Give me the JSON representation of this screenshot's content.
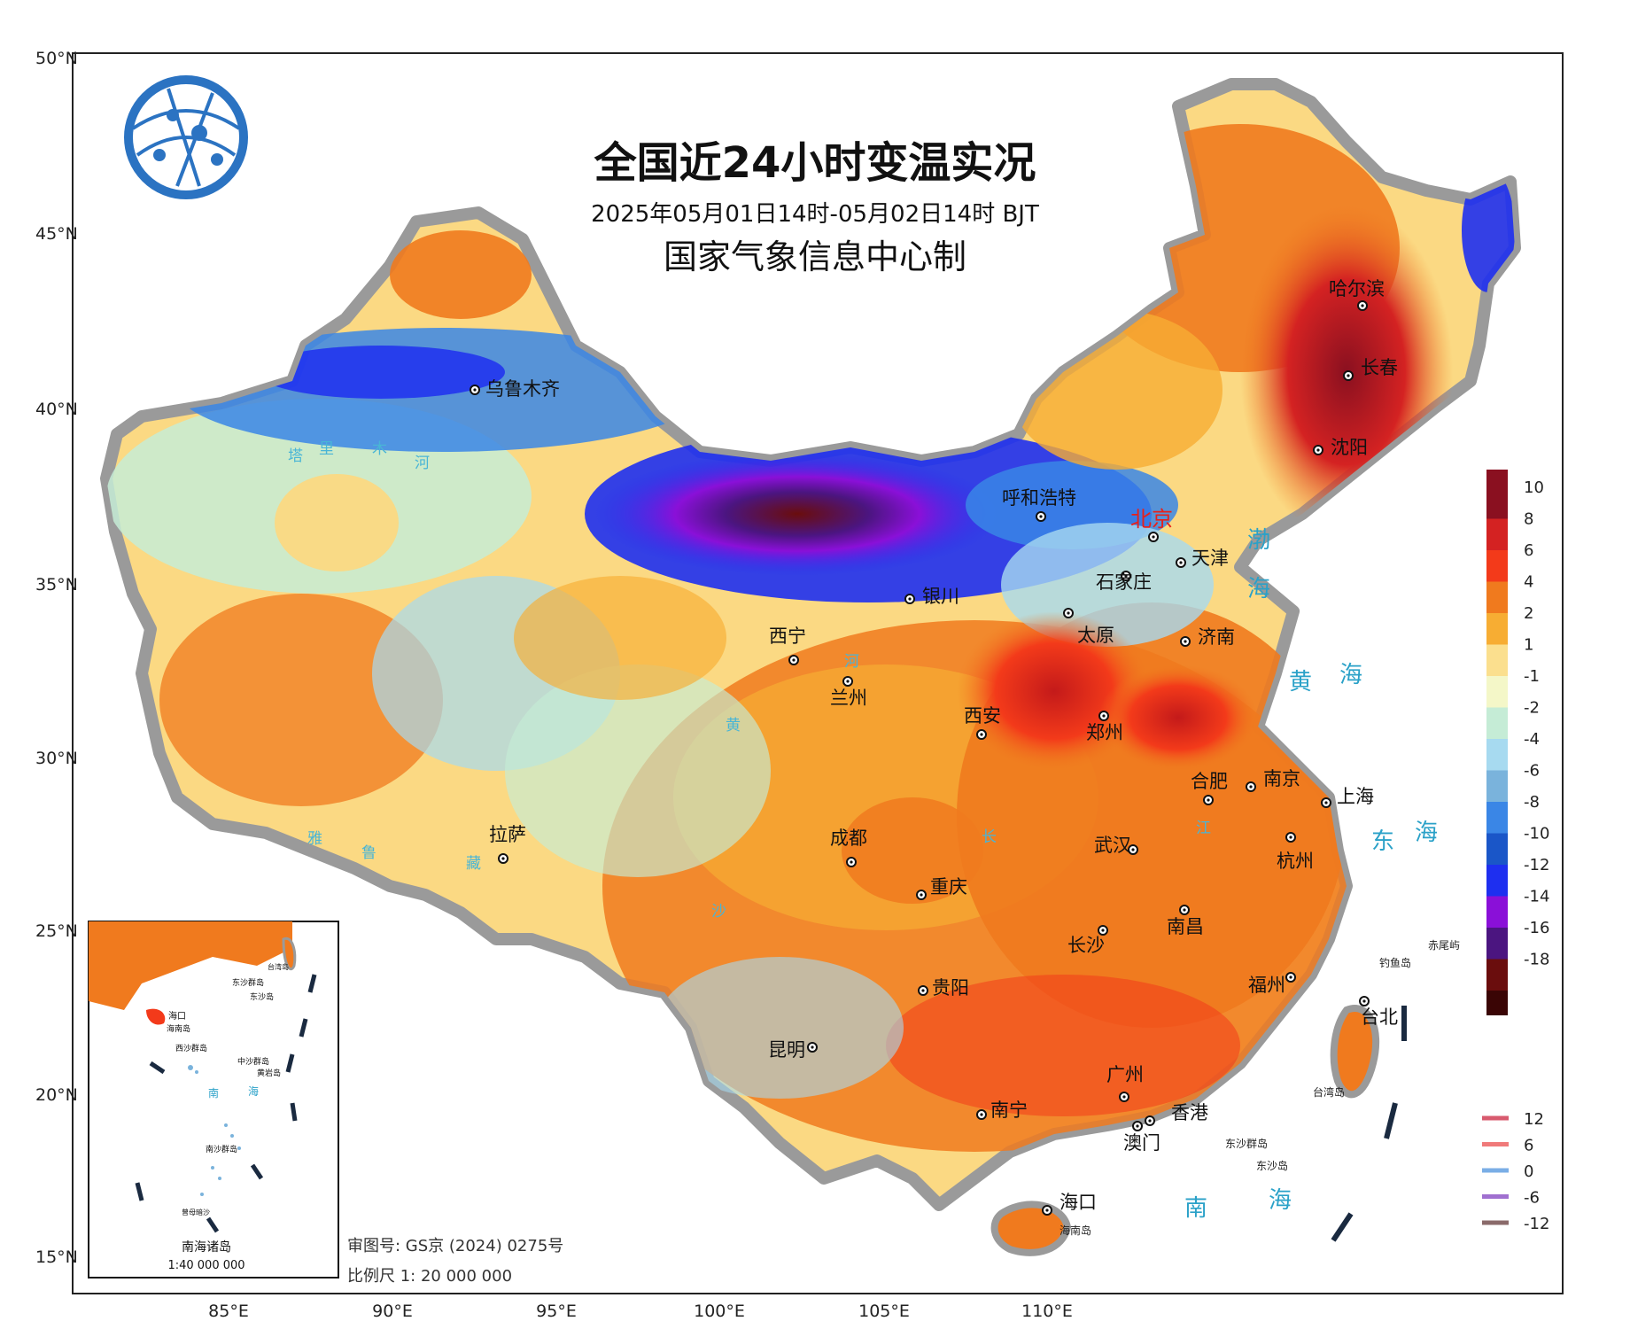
{
  "header": {
    "title": "全国近24小时变温实况",
    "period": "2025年05月01日14时-05月02日14时 BJT",
    "producer": "国家气象信息中心制"
  },
  "axes": {
    "lon": [
      "85°E",
      "90°E",
      "95°E",
      "100°E",
      "105°E",
      "110°E"
    ],
    "lat": [
      "50°N",
      "45°N",
      "40°N",
      "35°N",
      "30°N",
      "25°N",
      "20°N",
      "15°N"
    ]
  },
  "cities": [
    "乌鲁木齐",
    "哈尔滨",
    "长春",
    "沈阳",
    "呼和浩特",
    "北京",
    "天津",
    "石家庄",
    "银川",
    "太原",
    "济南",
    "西宁",
    "兰州",
    "西安",
    "郑州",
    "合肥",
    "南京",
    "上海",
    "杭州",
    "拉萨",
    "成都",
    "重庆",
    "武汉",
    "长沙",
    "南昌",
    "贵阳",
    "福州",
    "台北",
    "昆明",
    "广州",
    "南宁",
    "香港",
    "澳门",
    "海口"
  ],
  "islands": {
    "chiwei": "赤尾屿",
    "diaoyu": "钓鱼岛",
    "taiwan": "台湾岛",
    "dongsha": "东沙群岛",
    "dongsha_isl": "东沙岛",
    "hainan": "海南岛"
  },
  "seas": {
    "bohai_1": "渤",
    "bohai_2": "海",
    "yellow_1": "黄",
    "yellow_2": "海",
    "east_1": "东",
    "east_2": "海",
    "south_1": "南",
    "south_2": "海"
  },
  "rivers": {
    "tarim": [
      "塔",
      "里",
      "木",
      "河"
    ],
    "yellow": [
      "河",
      "黄"
    ],
    "yarlung": [
      "雅",
      "鲁",
      "藏"
    ],
    "yangtze": [
      "长",
      "江"
    ],
    "other": [
      "沙"
    ]
  },
  "inset": {
    "title": "南海诸岛",
    "scale": "1:40 000 000",
    "labels": [
      "海口",
      "海南岛",
      "东沙群岛",
      "东沙岛",
      "西沙群岛",
      "中沙群岛",
      "黄岩岛",
      "南",
      "海",
      "南沙群岛",
      "曾母暗沙",
      "台湾岛"
    ]
  },
  "footer": {
    "review_no": "审图号: GS京 (2024) 0275号",
    "scale": "比例尺 1: 20 000 000"
  },
  "legend": {
    "color_bar": [
      {
        "label": "10",
        "color": "#8a1020"
      },
      {
        "label": "8",
        "color": "#d42222"
      },
      {
        "label": "6",
        "color": "#f33a1a"
      },
      {
        "label": "4",
        "color": "#f07a1e"
      },
      {
        "label": "2",
        "color": "#f7ad33"
      },
      {
        "label": "1",
        "color": "#fbdf8e"
      },
      {
        "label": "-1",
        "color": "#f4f7c8"
      },
      {
        "label": "-2",
        "color": "#c5ecd6"
      },
      {
        "label": "-4",
        "color": "#a7daf0"
      },
      {
        "label": "-6",
        "color": "#7ab3dc"
      },
      {
        "label": "-8",
        "color": "#3a86e6"
      },
      {
        "label": "-10",
        "color": "#1a56c8"
      },
      {
        "label": "-12",
        "color": "#1e2ff0"
      },
      {
        "label": "-14",
        "color": "#8a10d8"
      },
      {
        "label": "-16",
        "color": "#4b1580"
      },
      {
        "label": "-18",
        "color": "#6a0d0d"
      }
    ],
    "color_bar_bottom": "#3a0505",
    "contours": [
      {
        "label": "12",
        "color": "#d85a6e"
      },
      {
        "label": "6",
        "color": "#f07a7a"
      },
      {
        "label": "0",
        "color": "#7aaee6"
      },
      {
        "label": "-6",
        "color": "#a070d0"
      },
      {
        "label": "-12",
        "color": "#8a6a6a"
      }
    ]
  }
}
